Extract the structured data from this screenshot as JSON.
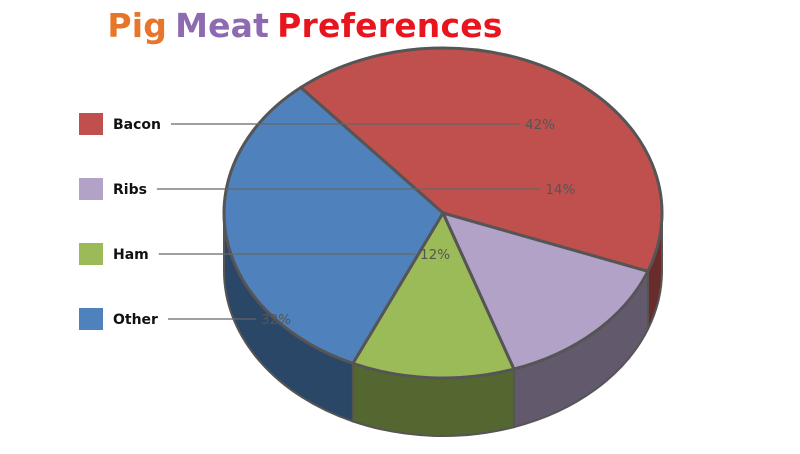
{
  "title": {
    "words": [
      {
        "text": "Pig",
        "color": "#e8762a"
      },
      {
        "text": "Meat",
        "color": "#8e6bb1"
      },
      {
        "text": "Preferences",
        "color": "#e8141e"
      }
    ]
  },
  "chart_data": {
    "type": "pie",
    "style": "3d",
    "legend_position": "left",
    "categories": [
      "Bacon",
      "Ribs",
      "Ham",
      "Other"
    ],
    "values": [
      42,
      14,
      12,
      32
    ],
    "labels": [
      "42%",
      "14%",
      "12%",
      "32%"
    ],
    "colors": [
      "#c0504d",
      "#b3a2c7",
      "#9bbb59",
      "#4f81bd"
    ]
  }
}
